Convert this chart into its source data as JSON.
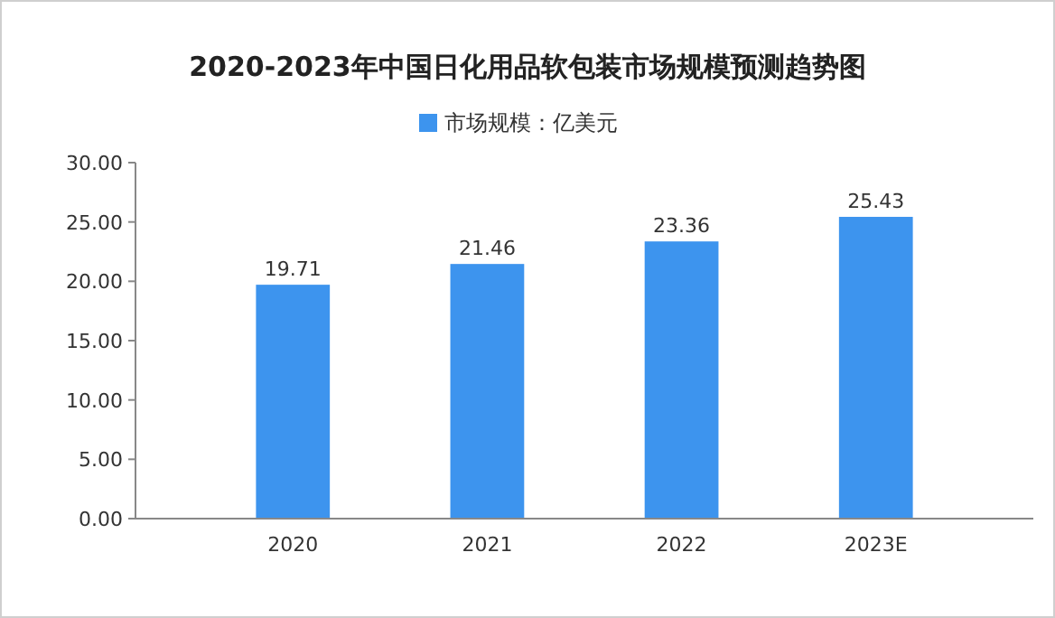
{
  "chart_data": {
    "type": "bar",
    "title": "2020-2023年中国日化用品软包装市场规模预测趋势图",
    "categories": [
      "2020",
      "2021",
      "2022",
      "2023E"
    ],
    "series": [
      {
        "name": "市场规模：亿美元",
        "color": "#3d94ee",
        "values": [
          19.71,
          21.46,
          23.36,
          25.43
        ]
      }
    ],
    "ylim": [
      0,
      30
    ],
    "yticks": [
      {
        "value": 0,
        "label": "0.00"
      },
      {
        "value": 5,
        "label": "5.00"
      },
      {
        "value": 10,
        "label": "10.00"
      },
      {
        "value": 15,
        "label": "15.00"
      },
      {
        "value": 20,
        "label": "20.00"
      },
      {
        "value": 25,
        "label": "25.00"
      },
      {
        "value": 30,
        "label": "30.00"
      }
    ],
    "data_labels": true,
    "legend": "top",
    "grid": false
  }
}
